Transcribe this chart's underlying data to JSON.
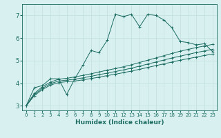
{
  "xlabel": "Humidex (Indice chaleur)",
  "ylabel": "",
  "bg_color": "#d8f0f0",
  "grid_color": "#c0dede",
  "line_color": "#1a6b60",
  "xlim": [
    -0.5,
    23.5
  ],
  "ylim": [
    2.8,
    7.5
  ],
  "x_ticks": [
    0,
    1,
    2,
    3,
    4,
    5,
    6,
    7,
    8,
    9,
    10,
    11,
    12,
    13,
    14,
    15,
    16,
    17,
    18,
    19,
    20,
    21,
    22,
    23
  ],
  "y_ticks": [
    3,
    4,
    5,
    6,
    7
  ],
  "line1_x": [
    0,
    1,
    2,
    3,
    4,
    5,
    6,
    7,
    8,
    9,
    10,
    11,
    12,
    13,
    14,
    15,
    16,
    17,
    18,
    19,
    20,
    21,
    22,
    23
  ],
  "line1_y": [
    3.0,
    3.8,
    3.9,
    4.2,
    4.2,
    3.5,
    4.2,
    4.8,
    5.45,
    5.35,
    5.9,
    7.05,
    6.95,
    7.05,
    6.5,
    7.05,
    7.0,
    6.8,
    6.45,
    5.85,
    5.8,
    5.7,
    5.75,
    5.4
  ],
  "line2_x": [
    0,
    1,
    2,
    3,
    4,
    5,
    6,
    7,
    8,
    9,
    10,
    11,
    12,
    13,
    14,
    15,
    16,
    17,
    18,
    19,
    20,
    21,
    22,
    23
  ],
  "line2_y": [
    3.0,
    3.55,
    3.85,
    4.05,
    4.18,
    4.22,
    4.28,
    4.35,
    4.42,
    4.5,
    4.58,
    4.65,
    4.73,
    4.82,
    4.92,
    5.02,
    5.12,
    5.22,
    5.32,
    5.42,
    5.5,
    5.58,
    5.65,
    5.72
  ],
  "line3_x": [
    0,
    1,
    2,
    3,
    4,
    5,
    6,
    7,
    8,
    9,
    10,
    11,
    12,
    13,
    14,
    15,
    16,
    17,
    18,
    19,
    20,
    21,
    22,
    23
  ],
  "line3_y": [
    3.0,
    3.5,
    3.78,
    3.98,
    4.1,
    4.14,
    4.18,
    4.24,
    4.31,
    4.38,
    4.45,
    4.52,
    4.59,
    4.67,
    4.76,
    4.85,
    4.94,
    5.03,
    5.12,
    5.2,
    5.28,
    5.36,
    5.43,
    5.5
  ],
  "line4_x": [
    0,
    1,
    2,
    3,
    4,
    5,
    6,
    7,
    8,
    9,
    10,
    11,
    12,
    13,
    14,
    15,
    16,
    17,
    18,
    19,
    20,
    21,
    22,
    23
  ],
  "line4_y": [
    3.0,
    3.45,
    3.72,
    3.92,
    4.03,
    4.07,
    4.1,
    4.15,
    4.21,
    4.27,
    4.34,
    4.4,
    4.47,
    4.54,
    4.62,
    4.7,
    4.78,
    4.86,
    4.94,
    5.02,
    5.09,
    5.16,
    5.23,
    5.29
  ]
}
